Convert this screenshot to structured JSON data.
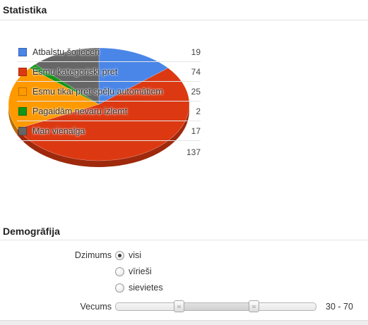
{
  "statistics": {
    "title": "Statistika"
  },
  "chart_data": {
    "type": "pie",
    "title": "",
    "slices": [
      {
        "label": "Atbalstu šo ieceri",
        "value": 19,
        "color": "#4a86e8"
      },
      {
        "label": "Esmu kategoriski pret",
        "value": 74,
        "color": "#dc3912"
      },
      {
        "label": "Esmu tikai pret spēļu automātiem",
        "value": 25,
        "color": "#ff9900"
      },
      {
        "label": "Pagaidām nevaru izlemt",
        "value": 2,
        "color": "#109618"
      },
      {
        "label": "Man vienalga",
        "value": 17,
        "color": "#666666"
      }
    ],
    "total": 137,
    "legend_position": "overlay-left"
  },
  "demographics": {
    "title": "Demogrāfija",
    "gender_label": "Dzimums",
    "gender_options": [
      {
        "label": "visi",
        "checked": true
      },
      {
        "label": "vīrieši",
        "checked": false
      },
      {
        "label": "sievietes",
        "checked": false
      }
    ],
    "age_label": "Vecums",
    "age_range": "30 - 70",
    "age_min": 30,
    "age_max": 70
  }
}
